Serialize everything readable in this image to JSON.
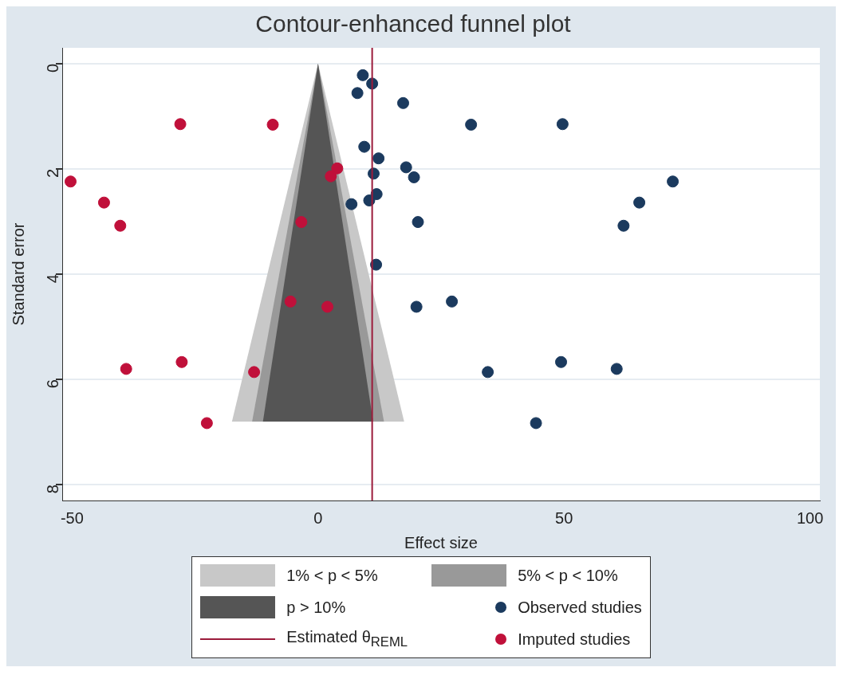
{
  "chart_data": {
    "type": "scatter",
    "title": "Contour-enhanced funnel plot",
    "xlabel": "Effect size",
    "ylabel": "Standard error",
    "xlim": [
      -52,
      102
    ],
    "xticks": [
      -50,
      0,
      50,
      100
    ],
    "ylim": [
      8.3,
      -0.3
    ],
    "yticks": [
      0,
      2,
      4,
      6,
      8
    ],
    "grid": "y",
    "legend": "bottom",
    "series": [
      {
        "name": "1% < p < 5%",
        "type": "area",
        "color": "#c8c8c8",
        "x": [
          -17.5,
          0,
          17.5
        ],
        "values": [
          6.8,
          0,
          6.8
        ]
      },
      {
        "name": "5% < p < 10%",
        "type": "area",
        "color": "#999999",
        "x": [
          -13.4,
          0,
          13.4
        ],
        "values": [
          6.8,
          0,
          6.8
        ]
      },
      {
        "name": "p > 10%",
        "type": "area",
        "color": "#555555",
        "x": [
          -11.2,
          0,
          11.2
        ],
        "values": [
          6.8,
          0,
          6.8
        ]
      },
      {
        "name": "Observed studies",
        "type": "scatter",
        "marker": "circle",
        "color": "#1b3a5e",
        "x": [
          9.1,
          11.0,
          8.0,
          17.3,
          31.1,
          49.7,
          9.4,
          12.3,
          17.9,
          19.5,
          11.3,
          11.9,
          10.4,
          6.8,
          72.1,
          65.3,
          62.1,
          20.3,
          11.8,
          20.0,
          27.2,
          49.4,
          60.7,
          34.5,
          44.3
        ],
        "values": [
          0.22,
          0.38,
          0.56,
          0.75,
          1.16,
          1.15,
          1.58,
          1.8,
          1.97,
          2.16,
          2.09,
          2.48,
          2.6,
          2.67,
          2.24,
          2.64,
          3.08,
          3.01,
          3.82,
          4.62,
          4.52,
          5.67,
          5.8,
          5.86,
          6.83
        ]
      },
      {
        "name": "Imputed studies",
        "type": "scatter",
        "marker": "circle",
        "color": "#c0103a",
        "x": [
          -28.0,
          -9.2,
          3.9,
          2.6,
          -50.3,
          -43.5,
          -40.2,
          -3.4,
          -5.6,
          1.9,
          -27.7,
          -39.0,
          -13.0,
          -22.6
        ],
        "values": [
          1.15,
          1.16,
          1.99,
          2.14,
          2.24,
          2.64,
          3.08,
          3.01,
          4.52,
          4.62,
          5.67,
          5.8,
          5.86,
          6.83
        ]
      }
    ],
    "ref_lines": [
      {
        "axis": "x",
        "value": 11,
        "label": "Estimated θ$_{REML}$",
        "color": "#9b1b3b"
      }
    ]
  }
}
